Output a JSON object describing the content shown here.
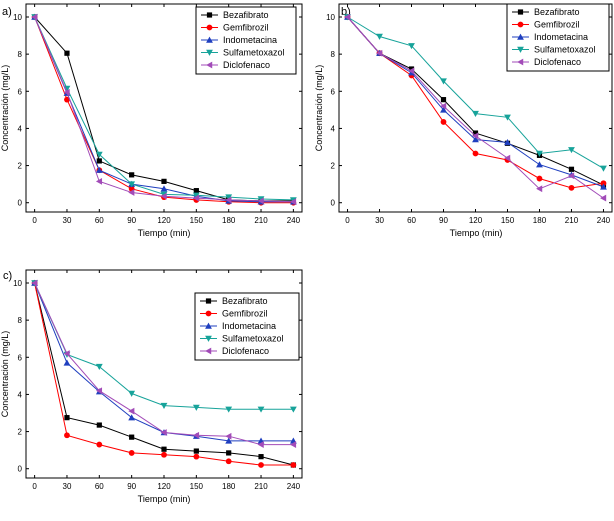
{
  "chart_data": [
    {
      "type": "line",
      "panel_label": "a)",
      "xlabel": "Tiempo (min)",
      "ylabel": "Concentración (mg/L)",
      "x": [
        0,
        30,
        60,
        90,
        120,
        150,
        180,
        210,
        240
      ],
      "xticks": [
        "0",
        "30",
        "60",
        "90",
        "120",
        "150",
        "180",
        "210",
        "240"
      ],
      "yticks": [
        "0",
        "2",
        "4",
        "6",
        "8",
        "10"
      ],
      "xlim": [
        -8,
        248
      ],
      "ylim": [
        -0.5,
        10.7
      ],
      "legend_position": "top-right",
      "series": [
        {
          "name": "Bezafibrato",
          "values": [
            10,
            8.05,
            2.25,
            1.5,
            1.15,
            0.65,
            0.15,
            0.1,
            0.1
          ]
        },
        {
          "name": "Gemfibrozil",
          "values": [
            10,
            5.55,
            1.75,
            0.75,
            0.3,
            0.15,
            0.05,
            0.0,
            0.0
          ]
        },
        {
          "name": "Indometacina",
          "values": [
            10,
            5.9,
            1.75,
            1.0,
            0.75,
            0.35,
            0.1,
            0.05,
            0.05
          ]
        },
        {
          "name": "Sulfametoxazol",
          "values": [
            10,
            6.15,
            2.6,
            1.0,
            0.45,
            0.4,
            0.3,
            0.2,
            0.15
          ]
        },
        {
          "name": "Diclofenaco",
          "values": [
            10,
            5.95,
            1.15,
            0.55,
            0.35,
            0.25,
            0.15,
            0.1,
            0.05
          ]
        }
      ]
    },
    {
      "type": "line",
      "panel_label": "b)",
      "xlabel": "Tiempo (min)",
      "ylabel": "Concentración (mg/L)",
      "x": [
        0,
        30,
        60,
        90,
        120,
        150,
        180,
        210,
        240
      ],
      "xticks": [
        "0",
        "30",
        "60",
        "90",
        "120",
        "150",
        "180",
        "210",
        "240"
      ],
      "yticks": [
        "0",
        "2",
        "4",
        "6",
        "8",
        "10"
      ],
      "xlim": [
        -8,
        248
      ],
      "ylim": [
        -0.5,
        10.7
      ],
      "legend_position": "top-right",
      "series": [
        {
          "name": "Bezafibrato",
          "values": [
            10,
            8.05,
            7.2,
            5.55,
            3.75,
            3.2,
            2.55,
            1.8,
            0.95
          ]
        },
        {
          "name": "Gemfibrozil",
          "values": [
            10,
            8.05,
            6.85,
            4.35,
            2.65,
            2.3,
            1.3,
            0.8,
            1.05
          ]
        },
        {
          "name": "Indometacina",
          "values": [
            10,
            8.05,
            7.0,
            5.0,
            3.4,
            3.25,
            2.05,
            1.5,
            0.85
          ]
        },
        {
          "name": "Sulfametoxazol",
          "values": [
            10,
            8.95,
            8.45,
            6.55,
            4.8,
            4.6,
            2.65,
            2.85,
            1.85
          ]
        },
        {
          "name": "Diclofenaco",
          "values": [
            10,
            8.05,
            7.1,
            5.2,
            3.6,
            2.4,
            0.75,
            1.45,
            0.25
          ]
        }
      ]
    },
    {
      "type": "line",
      "panel_label": "c)",
      "xlabel": "Tiempo (min)",
      "ylabel": "Concentración (mg/L)",
      "x": [
        0,
        30,
        60,
        90,
        120,
        150,
        180,
        210,
        240
      ],
      "xticks": [
        "0",
        "30",
        "60",
        "90",
        "120",
        "150",
        "180",
        "210",
        "240"
      ],
      "yticks": [
        "0",
        "2",
        "4",
        "6",
        "8",
        "10"
      ],
      "xlim": [
        -8,
        248
      ],
      "ylim": [
        -0.5,
        10.7
      ],
      "legend_position": "top-right",
      "series": [
        {
          "name": "Bezafibrato",
          "values": [
            10,
            2.75,
            2.35,
            1.7,
            1.05,
            0.95,
            0.85,
            0.65,
            0.2
          ]
        },
        {
          "name": "Gemfibrozil",
          "values": [
            10,
            1.8,
            1.3,
            0.85,
            0.75,
            0.65,
            0.4,
            0.2,
            0.2
          ]
        },
        {
          "name": "Indometacina",
          "values": [
            10,
            5.7,
            4.15,
            2.75,
            1.95,
            1.75,
            1.5,
            1.5,
            1.5
          ]
        },
        {
          "name": "Sulfametoxazol",
          "values": [
            10,
            6.15,
            5.5,
            4.05,
            3.4,
            3.3,
            3.2,
            3.2,
            3.2
          ]
        },
        {
          "name": "Diclofenaco",
          "values": [
            10,
            6.2,
            4.2,
            3.1,
            1.95,
            1.8,
            1.75,
            1.3,
            1.3
          ]
        }
      ]
    }
  ],
  "series_styles": [
    {
      "color": "#000000",
      "marker": "square"
    },
    {
      "color": "#ff0000",
      "marker": "circle"
    },
    {
      "color": "#1f3fbf",
      "marker": "triangle-up"
    },
    {
      "color": "#17a39a",
      "marker": "triangle-down"
    },
    {
      "color": "#a24bb8",
      "marker": "triangle-left"
    }
  ]
}
